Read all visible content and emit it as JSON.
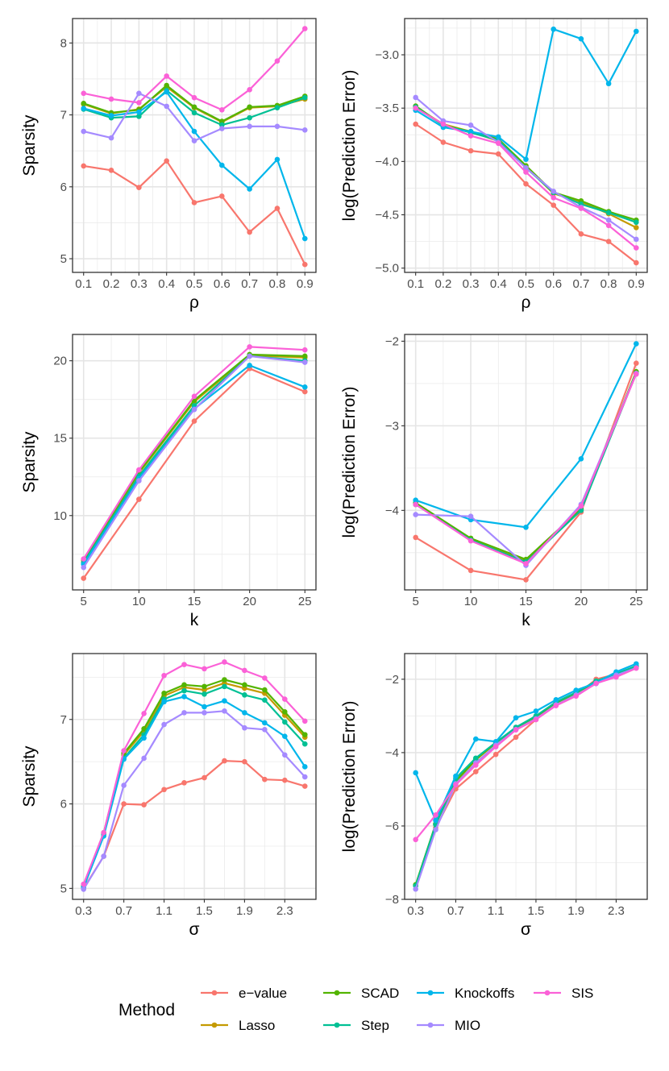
{
  "legend": {
    "title": "Method",
    "methods": [
      {
        "name": "e−value",
        "color": "#F8766D"
      },
      {
        "name": "Lasso",
        "color": "#C49A00"
      },
      {
        "name": "SCAD",
        "color": "#53B400"
      },
      {
        "name": "Step",
        "color": "#00C094"
      },
      {
        "name": "Knockoffs",
        "color": "#00B6EB"
      },
      {
        "name": "MIO",
        "color": "#A58AFF"
      },
      {
        "name": "SIS",
        "color": "#FB61D7"
      }
    ]
  },
  "chart_data": [
    {
      "type": "line",
      "xlabel": "ρ",
      "ylabel": "Sparsity",
      "x": [
        0.1,
        0.2,
        0.3,
        0.4,
        0.5,
        0.6,
        0.7,
        0.8,
        0.9
      ],
      "xticks": [
        0.1,
        0.2,
        0.3,
        0.4,
        0.5,
        0.6,
        0.7,
        0.8,
        0.9
      ],
      "xtick_labels": [
        "0.1",
        "0.2",
        "0.3",
        "0.4",
        "0.5",
        "0.6",
        "0.7",
        "0.8",
        "0.9"
      ],
      "xlim": [
        0.06,
        0.94
      ],
      "ylim": [
        4.81,
        8.34
      ],
      "yticks": [
        5,
        6,
        7,
        8
      ],
      "ytick_labels": [
        "5",
        "6",
        "7",
        "8"
      ],
      "series": [
        {
          "name": "e−value",
          "values": [
            6.29,
            6.23,
            5.99,
            6.36,
            5.78,
            5.87,
            5.37,
            5.7,
            4.92
          ]
        },
        {
          "name": "Lasso",
          "values": [
            7.15,
            7.02,
            7.08,
            7.39,
            7.1,
            6.9,
            7.1,
            7.12,
            7.22
          ]
        },
        {
          "name": "SCAD",
          "values": [
            7.16,
            7.03,
            7.07,
            7.41,
            7.11,
            6.91,
            7.11,
            7.13,
            7.26
          ]
        },
        {
          "name": "Step",
          "values": [
            7.08,
            6.96,
            6.98,
            7.34,
            7.03,
            6.86,
            6.96,
            7.1,
            7.24
          ]
        },
        {
          "name": "Knockoffs",
          "values": [
            7.09,
            6.99,
            7.04,
            7.32,
            6.77,
            6.3,
            5.97,
            6.38,
            5.28
          ]
        },
        {
          "name": "MIO",
          "values": [
            6.77,
            6.68,
            7.3,
            7.12,
            6.64,
            6.81,
            6.84,
            6.84,
            6.79
          ]
        },
        {
          "name": "SIS",
          "values": [
            7.3,
            7.22,
            7.17,
            7.54,
            7.24,
            7.07,
            7.35,
            7.75,
            8.2
          ]
        }
      ]
    },
    {
      "type": "line",
      "xlabel": "ρ",
      "ylabel": "log(Prediction Error)",
      "x": [
        0.1,
        0.2,
        0.3,
        0.4,
        0.5,
        0.6,
        0.7,
        0.8,
        0.9
      ],
      "xticks": [
        0.1,
        0.2,
        0.3,
        0.4,
        0.5,
        0.6,
        0.7,
        0.8,
        0.9
      ],
      "xtick_labels": [
        "0.1",
        "0.2",
        "0.3",
        "0.4",
        "0.5",
        "0.6",
        "0.7",
        "0.8",
        "0.9"
      ],
      "xlim": [
        0.06,
        0.94
      ],
      "ylim": [
        -5.04,
        -2.66
      ],
      "yticks": [
        -5.0,
        -4.5,
        -4.0,
        -3.5,
        -3.0
      ],
      "ytick_labels": [
        "−5.0",
        "−4.5",
        "−4.0",
        "−3.5",
        "−3.0"
      ],
      "series": [
        {
          "name": "e−value",
          "values": [
            -3.65,
            -3.82,
            -3.9,
            -3.93,
            -4.21,
            -4.41,
            -4.68,
            -4.75,
            -4.95
          ]
        },
        {
          "name": "Lasso",
          "values": [
            -3.49,
            -3.65,
            -3.72,
            -3.81,
            -4.05,
            -4.3,
            -4.38,
            -4.49,
            -4.62
          ]
        },
        {
          "name": "SCAD",
          "values": [
            -3.48,
            -3.66,
            -3.72,
            -3.79,
            -4.04,
            -4.29,
            -4.37,
            -4.47,
            -4.55
          ]
        },
        {
          "name": "Step",
          "values": [
            -3.49,
            -3.66,
            -3.73,
            -3.8,
            -4.06,
            -4.29,
            -4.4,
            -4.48,
            -4.57
          ]
        },
        {
          "name": "Knockoffs",
          "values": [
            -3.52,
            -3.68,
            -3.72,
            -3.77,
            -3.98,
            -2.76,
            -2.85,
            -3.27,
            -2.78
          ]
        },
        {
          "name": "MIO",
          "values": [
            -3.4,
            -3.62,
            -3.66,
            -3.82,
            -4.06,
            -4.28,
            -4.43,
            -4.55,
            -4.73
          ]
        },
        {
          "name": "SIS",
          "values": [
            -3.5,
            -3.65,
            -3.76,
            -3.83,
            -4.1,
            -4.34,
            -4.44,
            -4.6,
            -4.81
          ]
        }
      ]
    },
    {
      "type": "line",
      "xlabel": "k",
      "ylabel": "Sparsity",
      "x": [
        5,
        10,
        15,
        20,
        25
      ],
      "xticks": [
        5,
        10,
        15,
        20,
        25
      ],
      "xtick_labels": [
        "5",
        "10",
        "15",
        "20",
        "25"
      ],
      "xlim": [
        4.0,
        26.0
      ],
      "ylim": [
        5.2,
        21.7
      ],
      "yticks": [
        10,
        15,
        20
      ],
      "ytick_labels": [
        "10",
        "15",
        "20"
      ],
      "series": [
        {
          "name": "e−value",
          "values": [
            5.95,
            11.05,
            16.1,
            19.5,
            18.0
          ]
        },
        {
          "name": "Lasso",
          "values": [
            7.1,
            12.75,
            17.35,
            20.35,
            20.2
          ]
        },
        {
          "name": "SCAD",
          "values": [
            7.15,
            12.8,
            17.45,
            20.4,
            20.3
          ]
        },
        {
          "name": "Step",
          "values": [
            6.95,
            12.55,
            17.1,
            20.3,
            20.0
          ]
        },
        {
          "name": "Knockoffs",
          "values": [
            6.85,
            12.4,
            16.9,
            19.7,
            18.3
          ]
        },
        {
          "name": "MIO",
          "values": [
            6.65,
            12.25,
            16.85,
            20.3,
            19.9
          ]
        },
        {
          "name": "SIS",
          "values": [
            7.2,
            12.95,
            17.7,
            20.9,
            20.7
          ]
        }
      ]
    },
    {
      "type": "line",
      "xlabel": "k",
      "ylabel": "log(Prediction Error)",
      "x": [
        5,
        10,
        15,
        20,
        25
      ],
      "xticks": [
        5,
        10,
        15,
        20,
        25
      ],
      "xtick_labels": [
        "5",
        "10",
        "15",
        "20",
        "25"
      ],
      "xlim": [
        4.0,
        26.0
      ],
      "ylim": [
        -4.94,
        -1.92
      ],
      "yticks": [
        -4,
        -3,
        -2
      ],
      "ytick_labels": [
        "−4",
        "−3",
        "−2"
      ],
      "series": [
        {
          "name": "e−value",
          "values": [
            -4.32,
            -4.71,
            -4.82,
            -4.02,
            -2.26
          ]
        },
        {
          "name": "Lasso",
          "values": [
            -3.92,
            -4.34,
            -4.6,
            -3.99,
            -2.37
          ]
        },
        {
          "name": "SCAD",
          "values": [
            -3.91,
            -4.33,
            -4.58,
            -3.98,
            -2.36
          ]
        },
        {
          "name": "Step",
          "values": [
            -3.93,
            -4.35,
            -4.61,
            -4.0,
            -2.38
          ]
        },
        {
          "name": "Knockoffs",
          "values": [
            -3.88,
            -4.11,
            -4.2,
            -3.39,
            -2.03
          ]
        },
        {
          "name": "MIO",
          "values": [
            -4.05,
            -4.07,
            -4.65,
            -3.93,
            -2.38
          ]
        },
        {
          "name": "SIS",
          "values": [
            -3.93,
            -4.36,
            -4.63,
            -3.95,
            -2.39
          ]
        }
      ]
    },
    {
      "type": "line",
      "xlabel": "σ",
      "ylabel": "Sparsity",
      "x": [
        0.3,
        0.5,
        0.7,
        0.9,
        1.1,
        1.3,
        1.5,
        1.7,
        1.9,
        2.1,
        2.3,
        2.5
      ],
      "xticks": [
        0.3,
        0.7,
        1.1,
        1.5,
        1.9,
        2.3
      ],
      "xtick_labels": [
        "0.3",
        "0.7",
        "1.1",
        "1.5",
        "1.9",
        "2.3"
      ],
      "xlim": [
        0.19,
        2.61
      ],
      "ylim": [
        4.87,
        7.78
      ],
      "yticks": [
        5,
        6,
        7
      ],
      "ytick_labels": [
        "5",
        "6",
        "7"
      ],
      "series": [
        {
          "name": "e−value",
          "values": [
            5.0,
            5.38,
            6.0,
            5.99,
            6.17,
            6.25,
            6.31,
            6.51,
            6.5,
            6.29,
            6.28,
            6.21
          ]
        },
        {
          "name": "Lasso",
          "values": [
            5.02,
            5.65,
            6.58,
            6.86,
            7.28,
            7.38,
            7.35,
            7.43,
            7.37,
            7.31,
            7.05,
            6.79
          ]
        },
        {
          "name": "SCAD",
          "values": [
            5.03,
            5.66,
            6.6,
            6.89,
            7.31,
            7.41,
            7.39,
            7.47,
            7.41,
            7.35,
            7.09,
            6.82
          ]
        },
        {
          "name": "Step",
          "values": [
            5.02,
            5.64,
            6.54,
            6.82,
            7.24,
            7.34,
            7.3,
            7.39,
            7.29,
            7.23,
            6.97,
            6.71
          ]
        },
        {
          "name": "Knockoffs",
          "values": [
            5.01,
            5.62,
            6.53,
            6.78,
            7.21,
            7.27,
            7.15,
            7.22,
            7.08,
            6.96,
            6.8,
            6.44
          ]
        },
        {
          "name": "MIO",
          "values": [
            4.99,
            5.38,
            6.22,
            6.54,
            6.94,
            7.08,
            7.08,
            7.1,
            6.9,
            6.88,
            6.58,
            6.32
          ]
        },
        {
          "name": "SIS",
          "values": [
            5.05,
            5.66,
            6.63,
            7.07,
            7.52,
            7.65,
            7.6,
            7.68,
            7.58,
            7.49,
            7.24,
            6.98
          ]
        }
      ]
    },
    {
      "type": "line",
      "xlabel": "σ",
      "ylabel": "log(Prediction Error)",
      "x": [
        0.3,
        0.5,
        0.7,
        0.9,
        1.1,
        1.3,
        1.5,
        1.7,
        1.9,
        2.1,
        2.3,
        2.5
      ],
      "xticks": [
        0.3,
        0.7,
        1.1,
        1.5,
        1.9,
        2.3
      ],
      "xtick_labels": [
        "0.3",
        "0.7",
        "1.1",
        "1.5",
        "1.9",
        "2.3"
      ],
      "xlim": [
        0.19,
        2.61
      ],
      "ylim": [
        -8.0,
        -1.3
      ],
      "yticks": [
        -8,
        -6,
        -4,
        -2
      ],
      "ytick_labels": [
        "−8",
        "−6",
        "−4",
        "−2"
      ],
      "series": [
        {
          "name": "e−value",
          "values": [
            -7.62,
            -6.05,
            -4.99,
            -4.52,
            -4.05,
            -3.58,
            -3.1,
            -2.69,
            -2.44,
            -2.0,
            -1.86,
            -1.64
          ]
        },
        {
          "name": "Lasso",
          "values": [
            -7.62,
            -5.95,
            -4.8,
            -4.2,
            -3.74,
            -3.35,
            -3.04,
            -2.66,
            -2.4,
            -2.08,
            -1.88,
            -1.67
          ]
        },
        {
          "name": "SCAD",
          "values": [
            -7.6,
            -5.94,
            -4.78,
            -4.18,
            -3.73,
            -3.33,
            -3.02,
            -2.64,
            -2.38,
            -2.07,
            -1.87,
            -1.66
          ]
        },
        {
          "name": "Step",
          "values": [
            -7.63,
            -5.96,
            -4.7,
            -4.15,
            -3.72,
            -3.31,
            -3.0,
            -2.62,
            -2.36,
            -2.05,
            -1.85,
            -1.64
          ]
        },
        {
          "name": "Knockoffs",
          "values": [
            -4.55,
            -5.85,
            -4.64,
            -3.63,
            -3.7,
            -3.05,
            -2.87,
            -2.56,
            -2.3,
            -2.1,
            -1.8,
            -1.58
          ]
        },
        {
          "name": "MIO",
          "values": [
            -7.72,
            -6.1,
            -4.85,
            -4.28,
            -3.8,
            -3.37,
            -3.08,
            -2.7,
            -2.43,
            -2.12,
            -1.89,
            -1.69
          ]
        },
        {
          "name": "SIS",
          "values": [
            -6.37,
            -5.7,
            -4.88,
            -4.34,
            -3.84,
            -3.38,
            -3.1,
            -2.72,
            -2.46,
            -2.11,
            -1.94,
            -1.7
          ]
        }
      ]
    }
  ]
}
